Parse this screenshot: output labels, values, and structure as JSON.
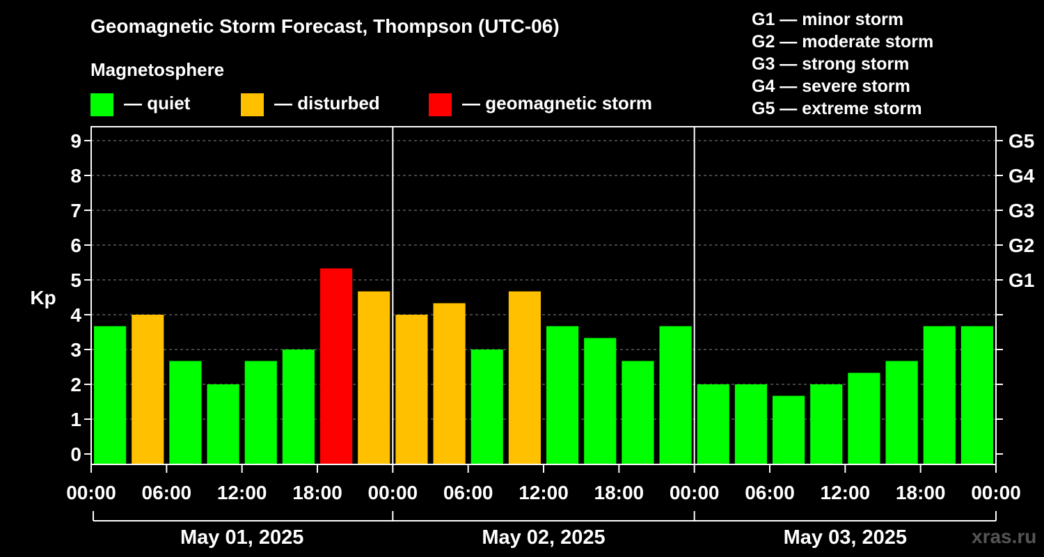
{
  "title": "Geomagnetic Storm Forecast, Thompson (UTC-06)",
  "subtitle": "Magnetosphere",
  "legend": [
    {
      "label": "— quiet",
      "color": "#00ff00"
    },
    {
      "label": "— disturbed",
      "color": "#ffc000"
    },
    {
      "label": "— geomagnetic storm",
      "color": "#ff0000"
    }
  ],
  "storm_scale": [
    "G1 — minor storm",
    "G2 — moderate storm",
    "G3 — strong storm",
    "G4 — severe storm",
    "G5 — extreme storm"
  ],
  "watermark": "xras.ru",
  "chart_data": {
    "type": "bar",
    "title": "Geomagnetic Storm Forecast, Thompson (UTC-06)",
    "ylabel": "Kp",
    "ylim": [
      -0.3,
      9.4
    ],
    "yticks": [
      "0",
      "1",
      "2",
      "3",
      "4",
      "5",
      "6",
      "7",
      "8",
      "9"
    ],
    "right_ticks": [
      {
        "value": 5,
        "label": "G1"
      },
      {
        "value": 6,
        "label": "G2"
      },
      {
        "value": 7,
        "label": "G3"
      },
      {
        "value": 8,
        "label": "G4"
      },
      {
        "value": 9,
        "label": "G5"
      }
    ],
    "xticks": [
      "00:00",
      "06:00",
      "12:00",
      "18:00",
      "00:00",
      "06:00",
      "12:00",
      "18:00",
      "00:00",
      "06:00",
      "12:00",
      "18:00",
      "00:00"
    ],
    "days": [
      "May 01, 2025",
      "May 02, 2025",
      "May 03, 2025"
    ],
    "interval_hours": 3,
    "values": [
      3.67,
      4.0,
      2.67,
      2.0,
      2.67,
      3.0,
      5.33,
      4.67,
      4.0,
      4.33,
      3.0,
      4.67,
      3.67,
      3.33,
      2.67,
      3.67,
      2.0,
      2.0,
      1.67,
      2.0,
      2.33,
      2.67,
      3.67,
      3.67
    ],
    "levels": [
      "quiet",
      "disturbed",
      "quiet",
      "quiet",
      "quiet",
      "quiet",
      "storm",
      "disturbed",
      "disturbed",
      "disturbed",
      "quiet",
      "disturbed",
      "quiet",
      "quiet",
      "quiet",
      "quiet",
      "quiet",
      "quiet",
      "quiet",
      "quiet",
      "quiet",
      "quiet",
      "quiet",
      "quiet"
    ],
    "level_colors": {
      "quiet": "#00ff00",
      "disturbed": "#ffc000",
      "storm": "#ff0000"
    },
    "grid": true,
    "legend_position": "top"
  }
}
